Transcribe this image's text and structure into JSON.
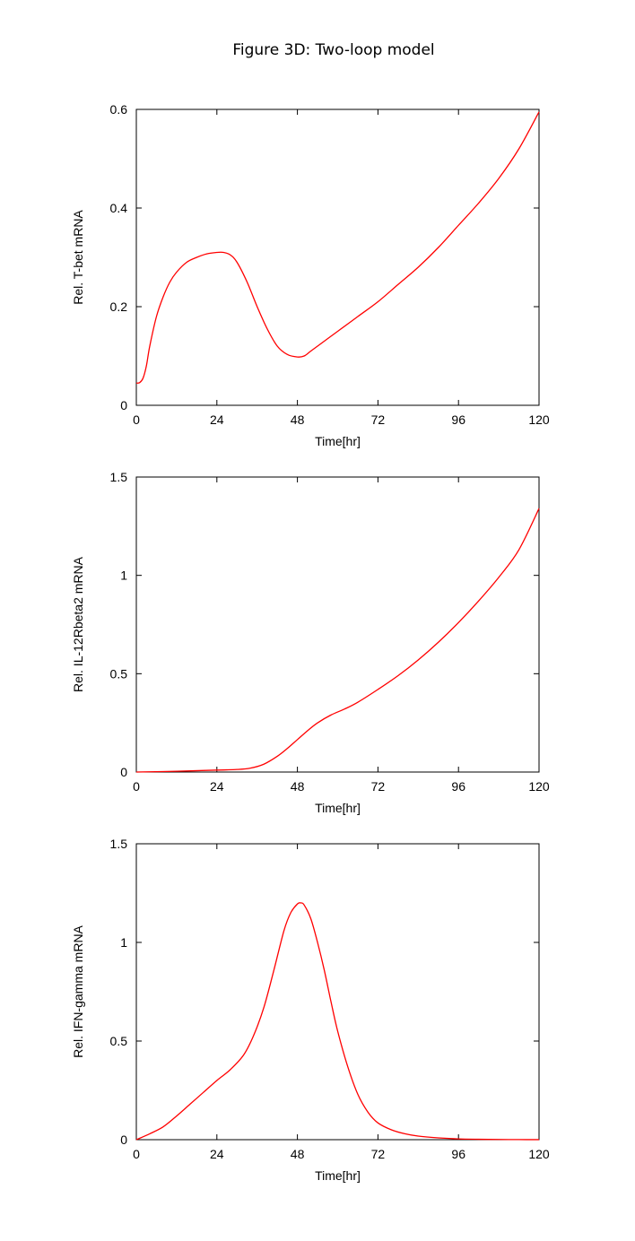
{
  "figure": {
    "title": "Figure 3D: Two-loop model"
  },
  "colors": {
    "series_line": "#ff0000",
    "axes": "#000000",
    "background": "#ffffff"
  },
  "chart_data": [
    {
      "type": "line",
      "xlabel": "Time[hr]",
      "ylabel": "Rel. T-bet mRNA",
      "xlim": [
        0,
        120
      ],
      "ylim": [
        0,
        0.6
      ],
      "xticks": [
        0,
        24,
        48,
        72,
        96,
        120
      ],
      "yticks": [
        0,
        0.2,
        0.4,
        0.6
      ],
      "ytick_labels": [
        "0",
        "0.2",
        "0.4",
        "0.6"
      ],
      "grid": false,
      "series": [
        {
          "x": [
            0,
            1,
            2,
            3,
            4,
            6,
            8,
            10,
            12,
            15,
            18,
            21,
            24,
            26,
            28,
            30,
            33,
            36,
            39,
            42,
            45,
            48,
            50,
            52,
            56,
            60,
            66,
            72,
            78,
            84,
            90,
            96,
            102,
            108,
            114,
            120
          ],
          "y": [
            0.045,
            0.046,
            0.055,
            0.08,
            0.12,
            0.18,
            0.22,
            0.25,
            0.27,
            0.29,
            0.3,
            0.307,
            0.31,
            0.31,
            0.305,
            0.29,
            0.25,
            0.2,
            0.155,
            0.12,
            0.103,
            0.098,
            0.1,
            0.11,
            0.13,
            0.15,
            0.18,
            0.21,
            0.245,
            0.28,
            0.32,
            0.365,
            0.41,
            0.46,
            0.52,
            0.595
          ]
        }
      ]
    },
    {
      "type": "line",
      "xlabel": "Time[hr]",
      "ylabel": "Rel. IL-12Rbeta2 mRNA",
      "xlim": [
        0,
        120
      ],
      "ylim": [
        0,
        1.5
      ],
      "xticks": [
        0,
        24,
        48,
        72,
        96,
        120
      ],
      "yticks": [
        0,
        0.5,
        1,
        1.5
      ],
      "ytick_labels": [
        "0",
        "0.5",
        "1",
        "1.5"
      ],
      "grid": false,
      "series": [
        {
          "x": [
            0,
            12,
            24,
            30,
            34,
            38,
            42,
            45,
            48,
            51,
            54,
            58,
            62,
            66,
            72,
            78,
            84,
            90,
            96,
            102,
            108,
            114,
            120
          ],
          "y": [
            0,
            0.004,
            0.01,
            0.013,
            0.02,
            0.04,
            0.08,
            0.12,
            0.165,
            0.21,
            0.25,
            0.29,
            0.32,
            0.355,
            0.42,
            0.49,
            0.57,
            0.66,
            0.76,
            0.87,
            0.99,
            1.13,
            1.34
          ]
        }
      ]
    },
    {
      "type": "line",
      "xlabel": "Time[hr]",
      "ylabel": "Rel. IFN-gamma mRNA",
      "xlim": [
        0,
        120
      ],
      "ylim": [
        0,
        1.5
      ],
      "xticks": [
        0,
        24,
        48,
        72,
        96,
        120
      ],
      "yticks": [
        0,
        0.5,
        1,
        1.5
      ],
      "ytick_labels": [
        "0",
        "0.5",
        "1",
        "1.5"
      ],
      "grid": false,
      "series": [
        {
          "x": [
            0,
            4,
            8,
            12,
            16,
            20,
            24,
            28,
            32,
            35,
            38,
            41,
            44,
            46,
            48,
            49,
            50,
            52,
            54,
            56,
            58,
            60,
            63,
            66,
            69,
            72,
            76,
            80,
            84,
            90,
            96,
            102,
            108,
            114,
            120
          ],
          "y": [
            0,
            0.03,
            0.065,
            0.12,
            0.18,
            0.24,
            0.3,
            0.355,
            0.43,
            0.53,
            0.67,
            0.86,
            1.06,
            1.15,
            1.195,
            1.2,
            1.19,
            1.12,
            1.0,
            0.86,
            0.7,
            0.55,
            0.37,
            0.23,
            0.14,
            0.085,
            0.05,
            0.03,
            0.018,
            0.009,
            0.004,
            0.002,
            0.001,
            0.0005,
            0.0002
          ]
        }
      ]
    }
  ]
}
